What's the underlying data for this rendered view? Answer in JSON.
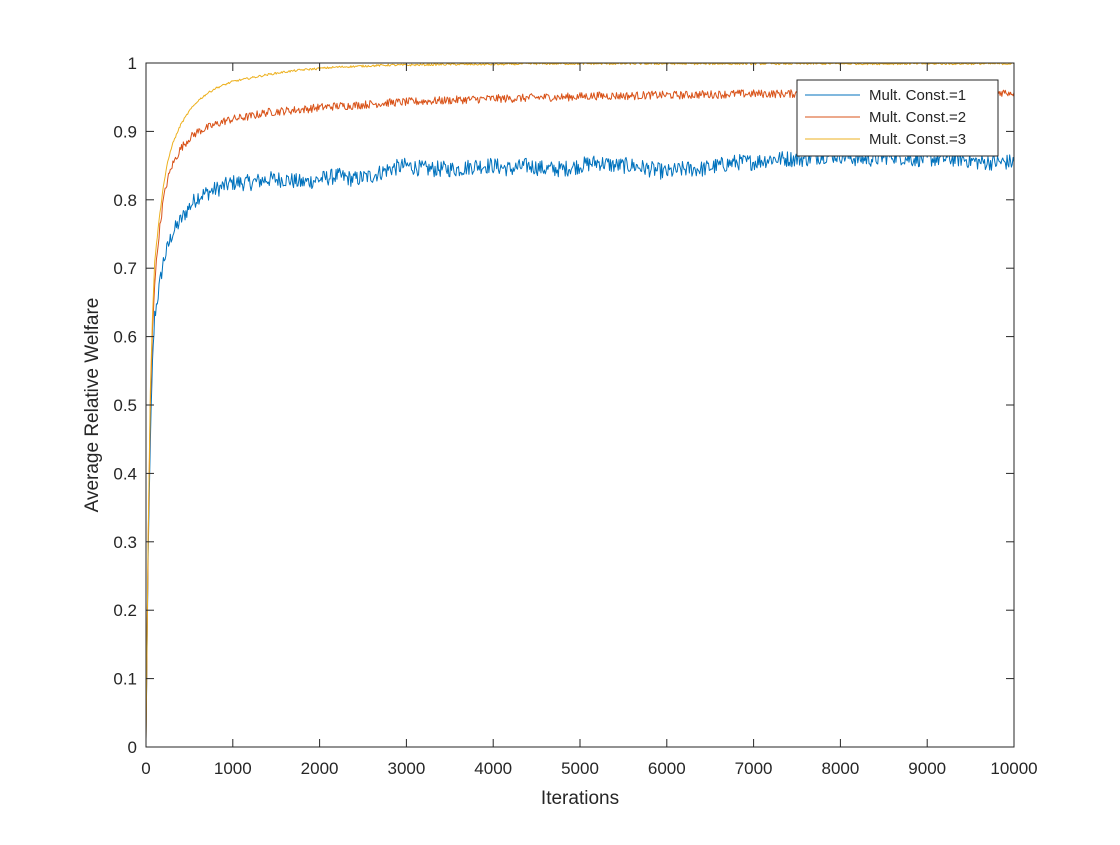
{
  "chart_data": {
    "type": "line",
    "title": "",
    "xlabel": "Iterations",
    "ylabel": "Average Relative Welfare",
    "xlim": [
      0,
      10000
    ],
    "ylim": [
      0,
      1
    ],
    "xticks": [
      0,
      1000,
      2000,
      3000,
      4000,
      5000,
      6000,
      7000,
      8000,
      9000,
      10000
    ],
    "yticks": [
      0,
      0.1,
      0.2,
      0.3,
      0.4,
      0.5,
      0.6,
      0.7,
      0.8,
      0.9,
      1
    ],
    "grid": false,
    "legend_position": "top-right",
    "series": [
      {
        "name": "Mult. Const.=1",
        "color": "#0072BD",
        "x": [
          0,
          25,
          50,
          75,
          100,
          150,
          200,
          250,
          300,
          400,
          500,
          600,
          700,
          800,
          900,
          1000,
          1200,
          1400,
          1600,
          1800,
          2000,
          2200,
          2400,
          2600,
          2800,
          3000,
          3200,
          3400,
          3600,
          3800,
          4000,
          4200,
          4400,
          4600,
          4800,
          5000,
          5200,
          5400,
          5600,
          5800,
          6000,
          6200,
          6400,
          6600,
          6800,
          7000,
          7200,
          7400,
          7600,
          7800,
          8000,
          8200,
          8400,
          8600,
          8800,
          9000,
          9200,
          9400,
          9600,
          9800,
          10000
        ],
        "values": [
          0.01,
          0.28,
          0.45,
          0.56,
          0.63,
          0.67,
          0.71,
          0.73,
          0.75,
          0.77,
          0.79,
          0.805,
          0.81,
          0.815,
          0.82,
          0.825,
          0.825,
          0.83,
          0.83,
          0.825,
          0.83,
          0.835,
          0.83,
          0.835,
          0.845,
          0.85,
          0.845,
          0.845,
          0.845,
          0.85,
          0.85,
          0.845,
          0.85,
          0.845,
          0.845,
          0.85,
          0.855,
          0.85,
          0.85,
          0.845,
          0.84,
          0.845,
          0.845,
          0.85,
          0.855,
          0.855,
          0.86,
          0.86,
          0.86,
          0.865,
          0.865,
          0.86,
          0.86,
          0.865,
          0.86,
          0.86,
          0.86,
          0.86,
          0.855,
          0.855,
          0.855
        ]
      },
      {
        "name": "Mult. Const.=2",
        "color": "#D95319",
        "x": [
          0,
          25,
          50,
          75,
          100,
          150,
          200,
          250,
          300,
          400,
          500,
          600,
          700,
          800,
          900,
          1000,
          1200,
          1400,
          1600,
          1800,
          2000,
          2200,
          2400,
          2600,
          2800,
          3000,
          3200,
          3400,
          3600,
          3800,
          4000,
          4200,
          4400,
          4600,
          4800,
          5000,
          5200,
          5400,
          5600,
          5800,
          6000,
          6200,
          6400,
          6600,
          6800,
          7000,
          7200,
          7400,
          7600,
          7800,
          8000,
          8200,
          8400,
          8600,
          8800,
          9000,
          9200,
          9400,
          9600,
          9800,
          10000
        ],
        "values": [
          0.01,
          0.3,
          0.5,
          0.61,
          0.68,
          0.75,
          0.8,
          0.83,
          0.85,
          0.875,
          0.89,
          0.9,
          0.905,
          0.91,
          0.915,
          0.918,
          0.922,
          0.928,
          0.93,
          0.932,
          0.935,
          0.937,
          0.938,
          0.94,
          0.942,
          0.943,
          0.944,
          0.945,
          0.946,
          0.947,
          0.948,
          0.948,
          0.949,
          0.95,
          0.95,
          0.951,
          0.952,
          0.952,
          0.952,
          0.953,
          0.953,
          0.953,
          0.954,
          0.954,
          0.955,
          0.955,
          0.955,
          0.955,
          0.956,
          0.956,
          0.956,
          0.956,
          0.957,
          0.957,
          0.957,
          0.957,
          0.957,
          0.957,
          0.957,
          0.957,
          0.957
        ]
      },
      {
        "name": "Mult. Const.=3",
        "color": "#EDB120",
        "x": [
          0,
          25,
          50,
          75,
          100,
          150,
          200,
          250,
          300,
          400,
          500,
          600,
          700,
          800,
          900,
          1000,
          1200,
          1400,
          1600,
          1800,
          2000,
          2200,
          2400,
          2600,
          2800,
          3000,
          3500,
          4000,
          4500,
          5000,
          5500,
          6000,
          6500,
          7000,
          7500,
          8000,
          8500,
          9000,
          9500,
          10000
        ],
        "values": [
          0.01,
          0.31,
          0.52,
          0.63,
          0.71,
          0.77,
          0.82,
          0.855,
          0.88,
          0.91,
          0.93,
          0.945,
          0.955,
          0.963,
          0.968,
          0.973,
          0.978,
          0.983,
          0.987,
          0.99,
          0.992,
          0.994,
          0.995,
          0.996,
          0.997,
          0.997,
          0.998,
          0.998,
          0.999,
          0.999,
          0.999,
          0.999,
          0.999,
          0.999,
          0.999,
          0.999,
          0.999,
          0.999,
          0.999,
          0.999
        ]
      }
    ]
  }
}
